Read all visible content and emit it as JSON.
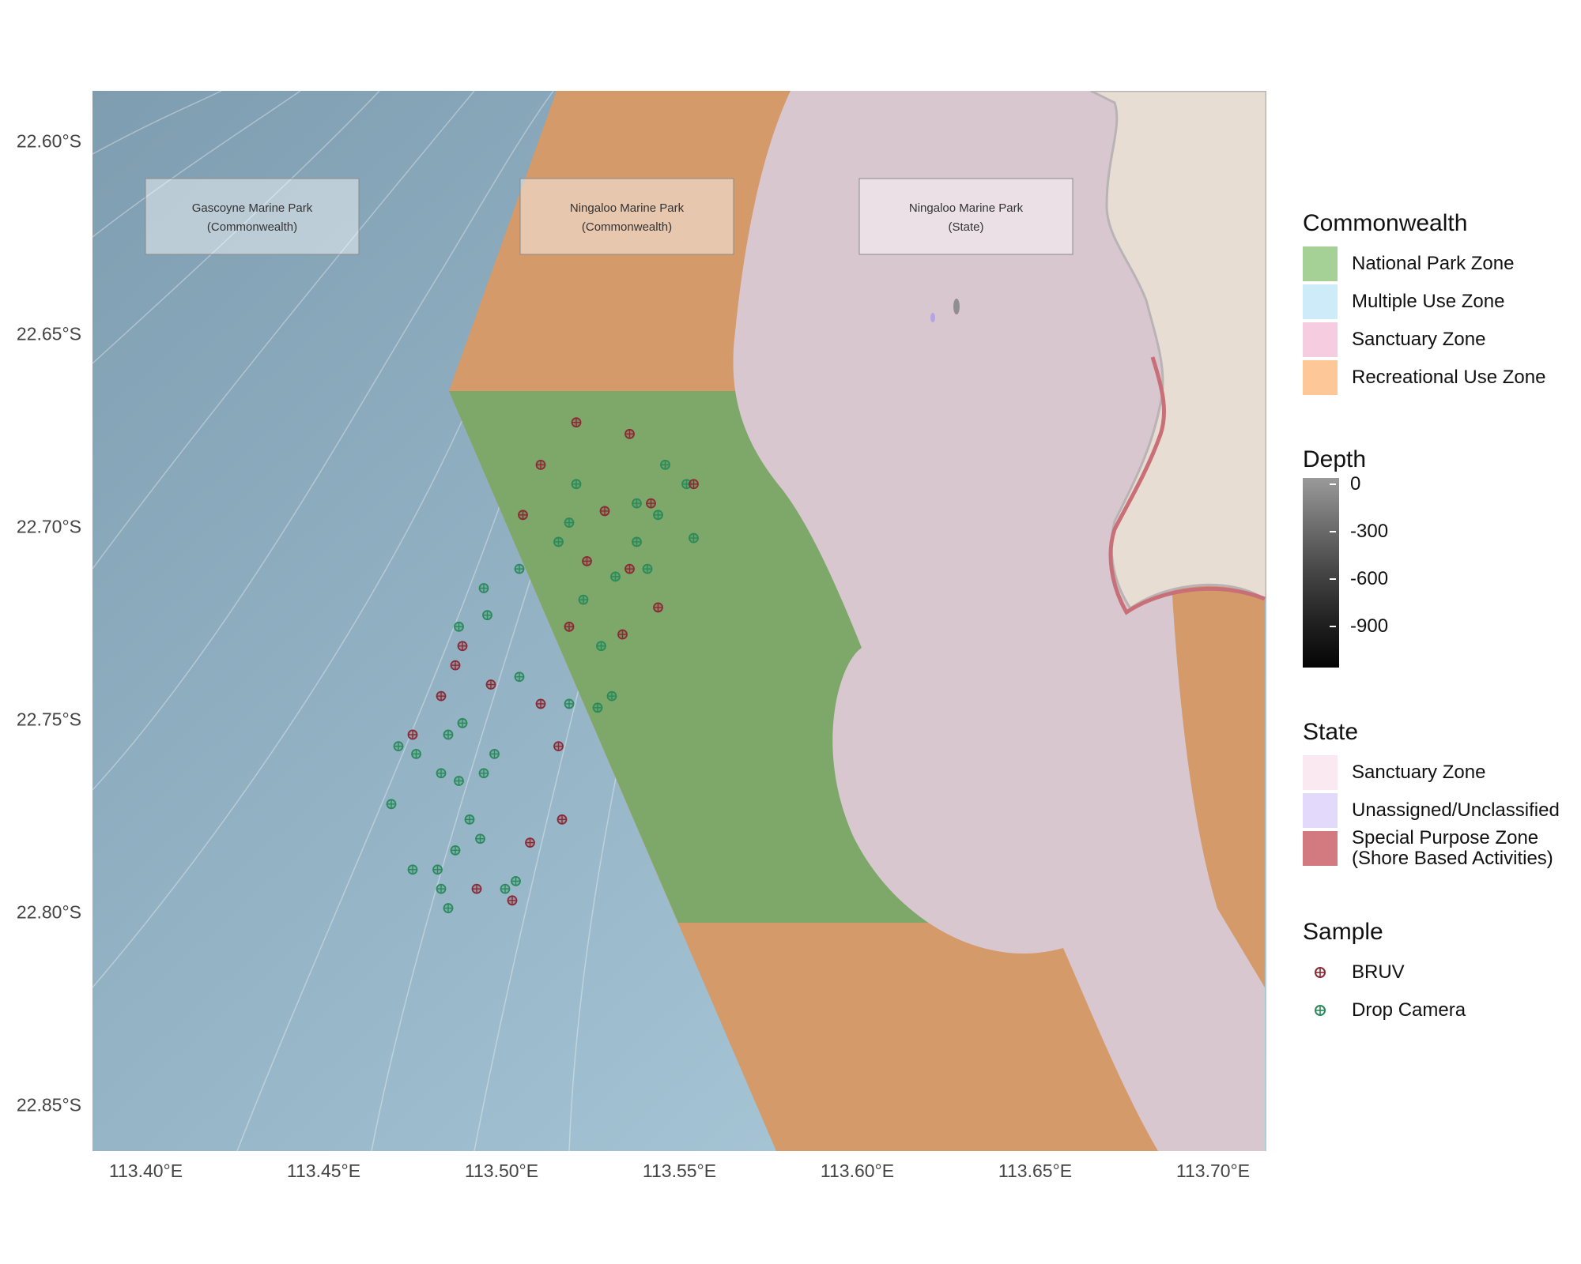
{
  "map": {
    "x_ticks": [
      "113.40°E",
      "113.45°E",
      "113.50°E",
      "113.55°E",
      "113.60°E",
      "113.65°E",
      "113.70°E"
    ],
    "y_ticks": [
      "22.60°S",
      "22.65°S",
      "22.70°S",
      "22.75°S",
      "22.80°S",
      "22.85°S"
    ],
    "extent": {
      "lon": [
        113.385,
        113.715
      ],
      "lat": [
        -22.862,
        -22.587
      ]
    },
    "park_labels": [
      {
        "line1": "Gascoyne Marine Park",
        "line2": "(Commonwealth)"
      },
      {
        "line1": "Ningaloo Marine Park",
        "line2": "(Commonwealth)"
      },
      {
        "line1": "Ningaloo Marine Park",
        "line2": "(State)"
      }
    ],
    "colors": {
      "ocean_deep": "#87a3b4",
      "ocean_shallow": "#a9c8d8",
      "national_park": "#7da86a",
      "recreational": "#d49a6a",
      "state_sanctuary": "#d9c7d0",
      "land": "#e7ddd3",
      "special_purpose": "#c96f78",
      "bruv": "#8b2a35",
      "drop_camera": "#2a8a5a"
    }
  },
  "legend": {
    "commonwealth": {
      "title": "Commonwealth",
      "items": [
        {
          "label": "National Park Zone",
          "color": "#a6d196"
        },
        {
          "label": "Multiple Use Zone",
          "color": "#cdebf9"
        },
        {
          "label": "Sanctuary Zone",
          "color": "#f6cde0"
        },
        {
          "label": "Recreational Use Zone",
          "color": "#fec797"
        }
      ]
    },
    "depth": {
      "title": "Depth",
      "ticks": [
        "0",
        "-300",
        "-600",
        "-900"
      ]
    },
    "state": {
      "title": "State",
      "items": [
        {
          "label": "Sanctuary Zone",
          "label2": "",
          "color": "#fbe9f2"
        },
        {
          "label": "Unassigned/Unclassified",
          "label2": "",
          "color": "#e2d9fb"
        },
        {
          "label": "Special Purpose Zone",
          "label2": "(Shore Based Activities)",
          "color": "#d27a80"
        }
      ]
    },
    "sample": {
      "title": "Sample",
      "items": [
        {
          "label": "BRUV",
          "color": "#8b2a35"
        },
        {
          "label": "Drop Camera",
          "color": "#2a8a5a"
        }
      ]
    }
  },
  "samples": {
    "bruv": [
      [
        113.521,
        -22.673
      ],
      [
        113.536,
        -22.676
      ],
      [
        113.511,
        -22.684
      ],
      [
        113.506,
        -22.697
      ],
      [
        113.529,
        -22.696
      ],
      [
        113.542,
        -22.694
      ],
      [
        113.554,
        -22.689
      ],
      [
        113.524,
        -22.709
      ],
      [
        113.536,
        -22.711
      ],
      [
        113.519,
        -22.726
      ],
      [
        113.534,
        -22.728
      ],
      [
        113.544,
        -22.721
      ],
      [
        113.489,
        -22.731
      ],
      [
        113.487,
        -22.736
      ],
      [
        113.483,
        -22.744
      ],
      [
        113.497,
        -22.741
      ],
      [
        113.511,
        -22.746
      ],
      [
        113.475,
        -22.754
      ],
      [
        113.516,
        -22.757
      ],
      [
        113.517,
        -22.776
      ],
      [
        113.508,
        -22.782
      ],
      [
        113.493,
        -22.794
      ],
      [
        113.503,
        -22.797
      ]
    ],
    "drop_camera": [
      [
        113.521,
        -22.689
      ],
      [
        113.546,
        -22.684
      ],
      [
        113.552,
        -22.689
      ],
      [
        113.538,
        -22.694
      ],
      [
        113.544,
        -22.697
      ],
      [
        113.519,
        -22.699
      ],
      [
        113.516,
        -22.704
      ],
      [
        113.538,
        -22.704
      ],
      [
        113.554,
        -22.703
      ],
      [
        113.505,
        -22.711
      ],
      [
        113.541,
        -22.711
      ],
      [
        113.532,
        -22.713
      ],
      [
        113.495,
        -22.716
      ],
      [
        113.523,
        -22.719
      ],
      [
        113.496,
        -22.723
      ],
      [
        113.488,
        -22.726
      ],
      [
        113.528,
        -22.731
      ],
      [
        113.505,
        -22.739
      ],
      [
        113.531,
        -22.744
      ],
      [
        113.519,
        -22.746
      ],
      [
        113.527,
        -22.747
      ],
      [
        113.489,
        -22.751
      ],
      [
        113.485,
        -22.754
      ],
      [
        113.471,
        -22.757
      ],
      [
        113.476,
        -22.759
      ],
      [
        113.498,
        -22.759
      ],
      [
        113.483,
        -22.764
      ],
      [
        113.495,
        -22.764
      ],
      [
        113.488,
        -22.766
      ],
      [
        113.469,
        -22.772
      ],
      [
        113.491,
        -22.776
      ],
      [
        113.494,
        -22.781
      ],
      [
        113.487,
        -22.784
      ],
      [
        113.475,
        -22.789
      ],
      [
        113.482,
        -22.789
      ],
      [
        113.504,
        -22.792
      ],
      [
        113.483,
        -22.794
      ],
      [
        113.501,
        -22.794
      ],
      [
        113.485,
        -22.799
      ]
    ]
  }
}
